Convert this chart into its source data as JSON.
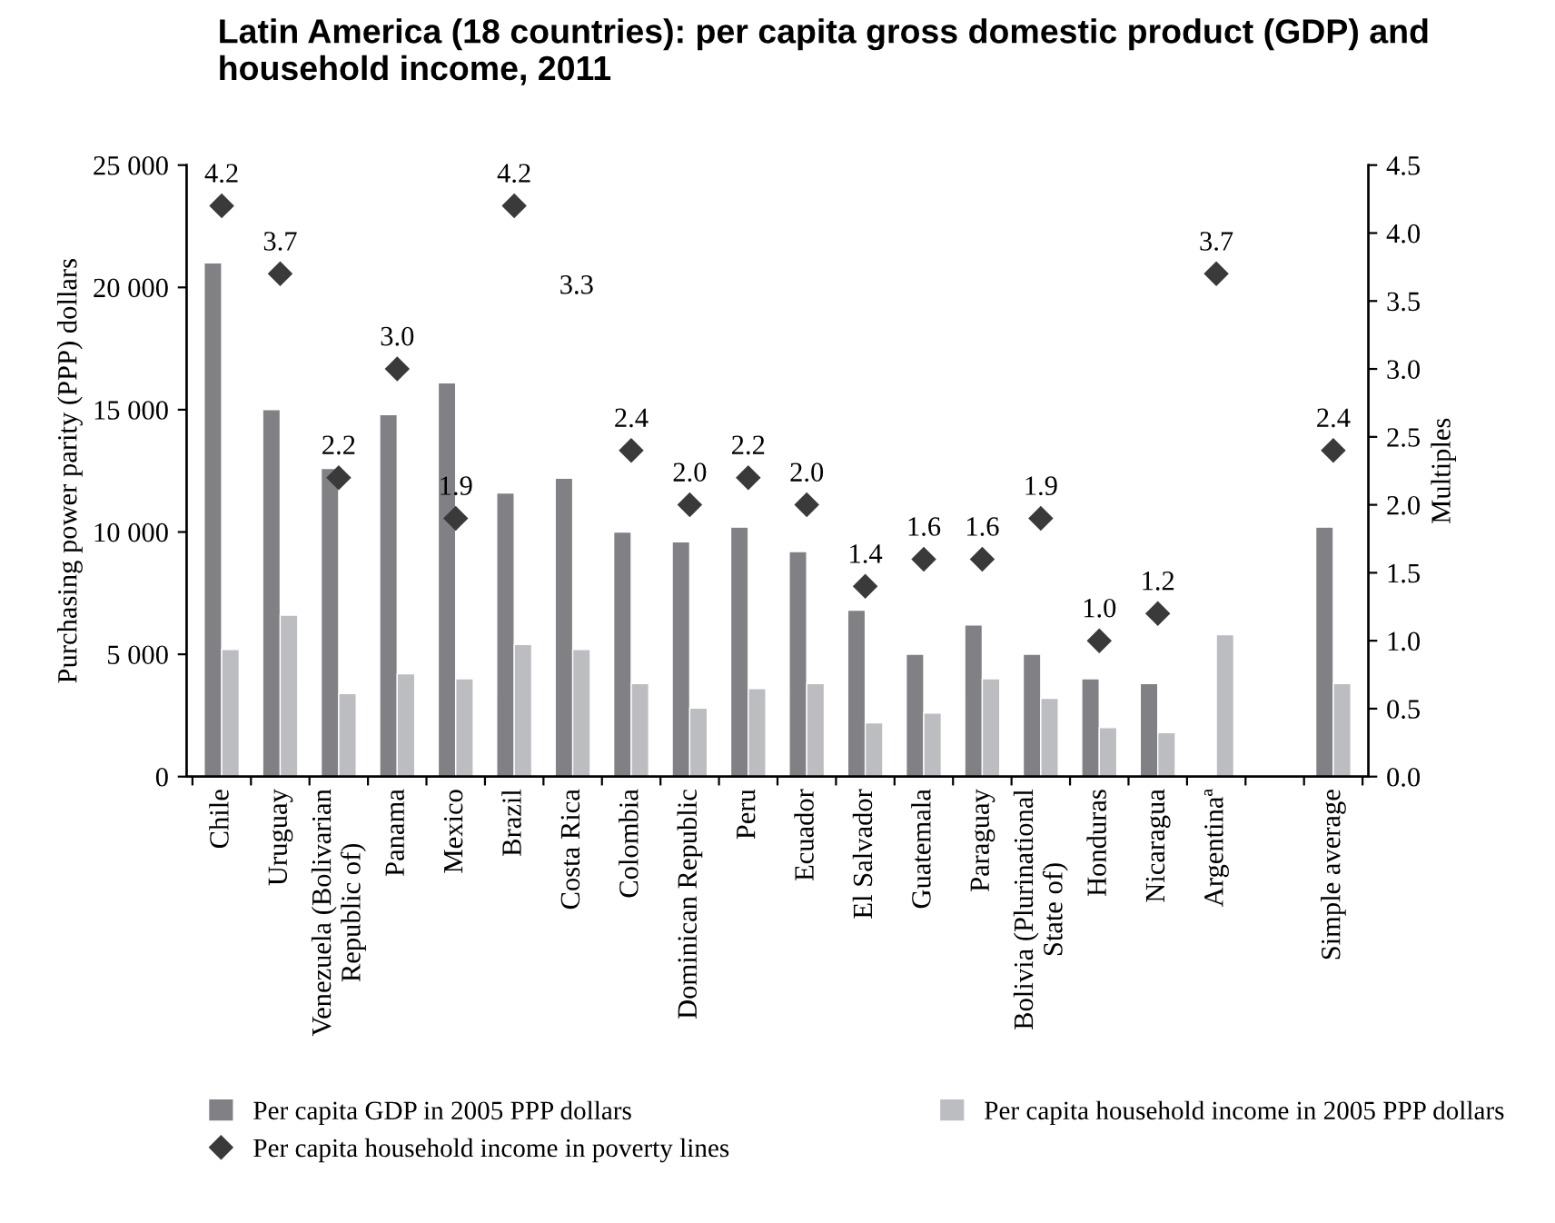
{
  "chart_data": {
    "type": "bar",
    "title": "Latin America (18 countries): per capita gross domestic product (GDP) and household income, 2011",
    "ylabel": "Purchasing power parity (PPP) dollars",
    "y2label": "Multiples",
    "categories": [
      "Chile",
      "Uruguay",
      "Venezuela (Bolivarian\nRepublic of)",
      "Panama",
      "Mexico",
      "Brazil",
      "Costa Rica",
      "Colombia",
      "Dominican Republic",
      "Peru",
      "Ecuador",
      "El Salvador",
      "Guatemala",
      "Paraguay",
      "Bolivia (Plurinational\nState of)",
      "Honduras",
      "Nicaragua",
      "Argentinaª",
      null,
      "Simple average"
    ],
    "series": [
      {
        "name": "Per capita GDP in 2005 PPP dollars",
        "color": "#808085",
        "values": [
          21000,
          15000,
          12600,
          14800,
          16100,
          11600,
          12200,
          10000,
          9600,
          10200,
          9200,
          6800,
          5000,
          6200,
          5000,
          4000,
          3800,
          null,
          null,
          10200
        ]
      },
      {
        "name": "Per capita household income in 2005 PPP dollars",
        "color": "#bcbdc1",
        "values": [
          5200,
          6600,
          3400,
          4200,
          4000,
          5400,
          5200,
          3800,
          2800,
          3600,
          3800,
          2200,
          2600,
          4000,
          3200,
          2000,
          1800,
          5800,
          null,
          3800
        ]
      },
      {
        "name": "Per capita household income in poverty lines",
        "color": "#3a3a3a",
        "type": "scatter",
        "axis": "y2",
        "marker": "diamond",
        "values": [
          4.2,
          3.7,
          2.2,
          3.0,
          1.9,
          4.2,
          null,
          2.4,
          2.0,
          2.2,
          2.0,
          1.4,
          1.6,
          1.6,
          1.9,
          1.0,
          1.2,
          3.7,
          null,
          2.4
        ],
        "value_labels": [
          "4.2",
          "3.7",
          "2.2",
          "3.0",
          "1.9",
          "4.2",
          null,
          "2.4",
          "2.0",
          "2.2",
          "2.0",
          "1.4",
          "1.6",
          "1.6",
          "1.9",
          "1.0",
          "1.2",
          "3.7",
          null,
          "2.4"
        ]
      }
    ],
    "annotations": [
      "3.3"
    ],
    "ylim": [
      0,
      25000
    ],
    "yticks": [
      0,
      {
        "value": 5000,
        "label": "5 000"
      },
      {
        "value": 10000,
        "label": "10 000"
      },
      {
        "value": 15000,
        "label": "15 000"
      },
      {
        "value": 20000,
        "label": "20 000"
      },
      {
        "value": 25000,
        "label": "25 000"
      }
    ],
    "y2lim": [
      0,
      4.5
    ],
    "y2ticks": [
      {
        "value": 0,
        "label": "0.0"
      },
      0.5,
      {
        "value": 1,
        "label": "1.0"
      },
      1.5,
      {
        "value": 2,
        "label": "2.0"
      },
      2.5,
      {
        "value": 3,
        "label": "3.0"
      },
      3.5,
      {
        "value": 4,
        "label": "4.0"
      },
      4.5
    ],
    "grid": false,
    "legend": "bottom"
  }
}
